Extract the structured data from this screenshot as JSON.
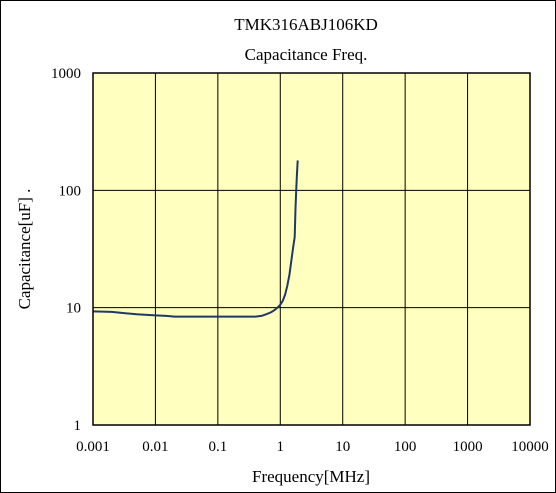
{
  "chart_data": {
    "type": "line",
    "title": "TMK316ABJ106KD",
    "subtitle": "Capacitance Freq.",
    "xlabel": "Frequency[MHz]",
    "ylabel": "Capacitance[uF] .",
    "x_scale": "log",
    "y_scale": "log",
    "xlim": [
      0.001,
      10000
    ],
    "ylim": [
      1,
      1000
    ],
    "x_ticks": [
      {
        "value": 0.001,
        "label": "0.001"
      },
      {
        "value": 0.01,
        "label": "0.01"
      },
      {
        "value": 0.1,
        "label": "0.1"
      },
      {
        "value": 1,
        "label": "1"
      },
      {
        "value": 10,
        "label": "10"
      },
      {
        "value": 100,
        "label": "100"
      },
      {
        "value": 1000,
        "label": "1000"
      },
      {
        "value": 10000,
        "label": "10000"
      }
    ],
    "y_ticks": [
      {
        "value": 1,
        "label": "1"
      },
      {
        "value": 10,
        "label": "10"
      },
      {
        "value": 100,
        "label": "100"
      },
      {
        "value": 1000,
        "label": "1000"
      }
    ],
    "grid": true,
    "plot_background": "#ffffc0",
    "line_color": "#1f3864",
    "series": [
      {
        "x": [
          0.001,
          0.002,
          0.003,
          0.005,
          0.01,
          0.015,
          0.02,
          0.05,
          0.1,
          0.2,
          0.4,
          0.5,
          0.6,
          0.7,
          0.8,
          0.9,
          1.0,
          1.1,
          1.2,
          1.3,
          1.4,
          1.5,
          1.6,
          1.7,
          1.75,
          1.8,
          1.85,
          1.9
        ],
        "y": [
          9.3,
          9.2,
          9.0,
          8.8,
          8.6,
          8.5,
          8.4,
          8.4,
          8.4,
          8.4,
          8.4,
          8.5,
          8.8,
          9.1,
          9.5,
          10.0,
          10.6,
          11.5,
          13.0,
          15.5,
          19.0,
          25.0,
          32.0,
          40.0,
          70.0,
          100.0,
          140.0,
          180.0
        ]
      }
    ]
  }
}
